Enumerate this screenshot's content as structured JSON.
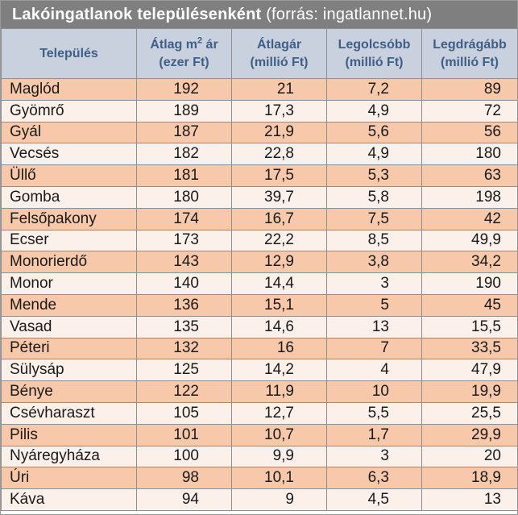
{
  "title": {
    "main": "Lakóingatlanok településenként",
    "source": "(forrás: ingatlannet.hu)"
  },
  "headers": {
    "col1": "Település",
    "col2_line1_pre": "Átlag m",
    "col2_line1_sup": "2",
    "col2_line1_post": " ár",
    "col2_line2": "(ezer Ft)",
    "col3_line1": "Átlagár",
    "col3_line2": "(millió Ft)",
    "col4_line1": "Legolcsóbb",
    "col4_line2": "(millió Ft)",
    "col5_line1": "Legdrágább",
    "col5_line2": "(millió Ft)"
  },
  "colors": {
    "title_bg": "#7f7f7f",
    "header_bg": "#c9d1de",
    "header_text": "#3e5f86",
    "row_odd": "#f7c8a9",
    "row_even": "#fbf1ea"
  },
  "chart_data": {
    "type": "table",
    "title": "Lakóingatlanok településenként (forrás: ingatlannet.hu)",
    "columns": [
      "Település",
      "Átlag m2 ár (ezer Ft)",
      "Átlagár (millió Ft)",
      "Legolcsóbb (millió Ft)",
      "Legdrágább (millió Ft)"
    ],
    "rows": [
      [
        "Maglód",
        "192",
        "21",
        "7,2",
        "89"
      ],
      [
        "Gyömrő",
        "189",
        "17,3",
        "4,9",
        "72"
      ],
      [
        "Gyál",
        "187",
        "21,9",
        "5,6",
        "56"
      ],
      [
        "Vecsés",
        "182",
        "22,8",
        "4,9",
        "180"
      ],
      [
        "Üllő",
        "181",
        "17,5",
        "5,3",
        "63"
      ],
      [
        "Gomba",
        "180",
        "39,7",
        "5,8",
        "198"
      ],
      [
        "Felsőpakony",
        "174",
        "16,7",
        "7,5",
        "42"
      ],
      [
        "Ecser",
        "173",
        "22,2",
        "8,5",
        "49,9"
      ],
      [
        "Monorierdő",
        "143",
        "12,9",
        "3,8",
        "34,2"
      ],
      [
        "Monor",
        "140",
        "14,4",
        "3",
        "190"
      ],
      [
        "Mende",
        "136",
        "15,1",
        "5",
        "45"
      ],
      [
        "Vasad",
        "135",
        "14,6",
        "13",
        "15,5"
      ],
      [
        "Péteri",
        "132",
        "16",
        "7",
        "33,5"
      ],
      [
        "Sülysáp",
        "125",
        "14,2",
        "4",
        "47,9"
      ],
      [
        "Bénye",
        "122",
        "11,9",
        "10",
        "19,9"
      ],
      [
        "Csévharaszt",
        "105",
        "12,7",
        "5,5",
        "25,5"
      ],
      [
        "Pilis",
        "101",
        "10,7",
        "1,7",
        "29,9"
      ],
      [
        "Nyáregyháza",
        "100",
        "9,9",
        "3",
        "20"
      ],
      [
        "Úri",
        "98",
        "10,1",
        "6,3",
        "18,9"
      ],
      [
        "Káva",
        "94",
        "9",
        "4,5",
        "13"
      ]
    ]
  }
}
